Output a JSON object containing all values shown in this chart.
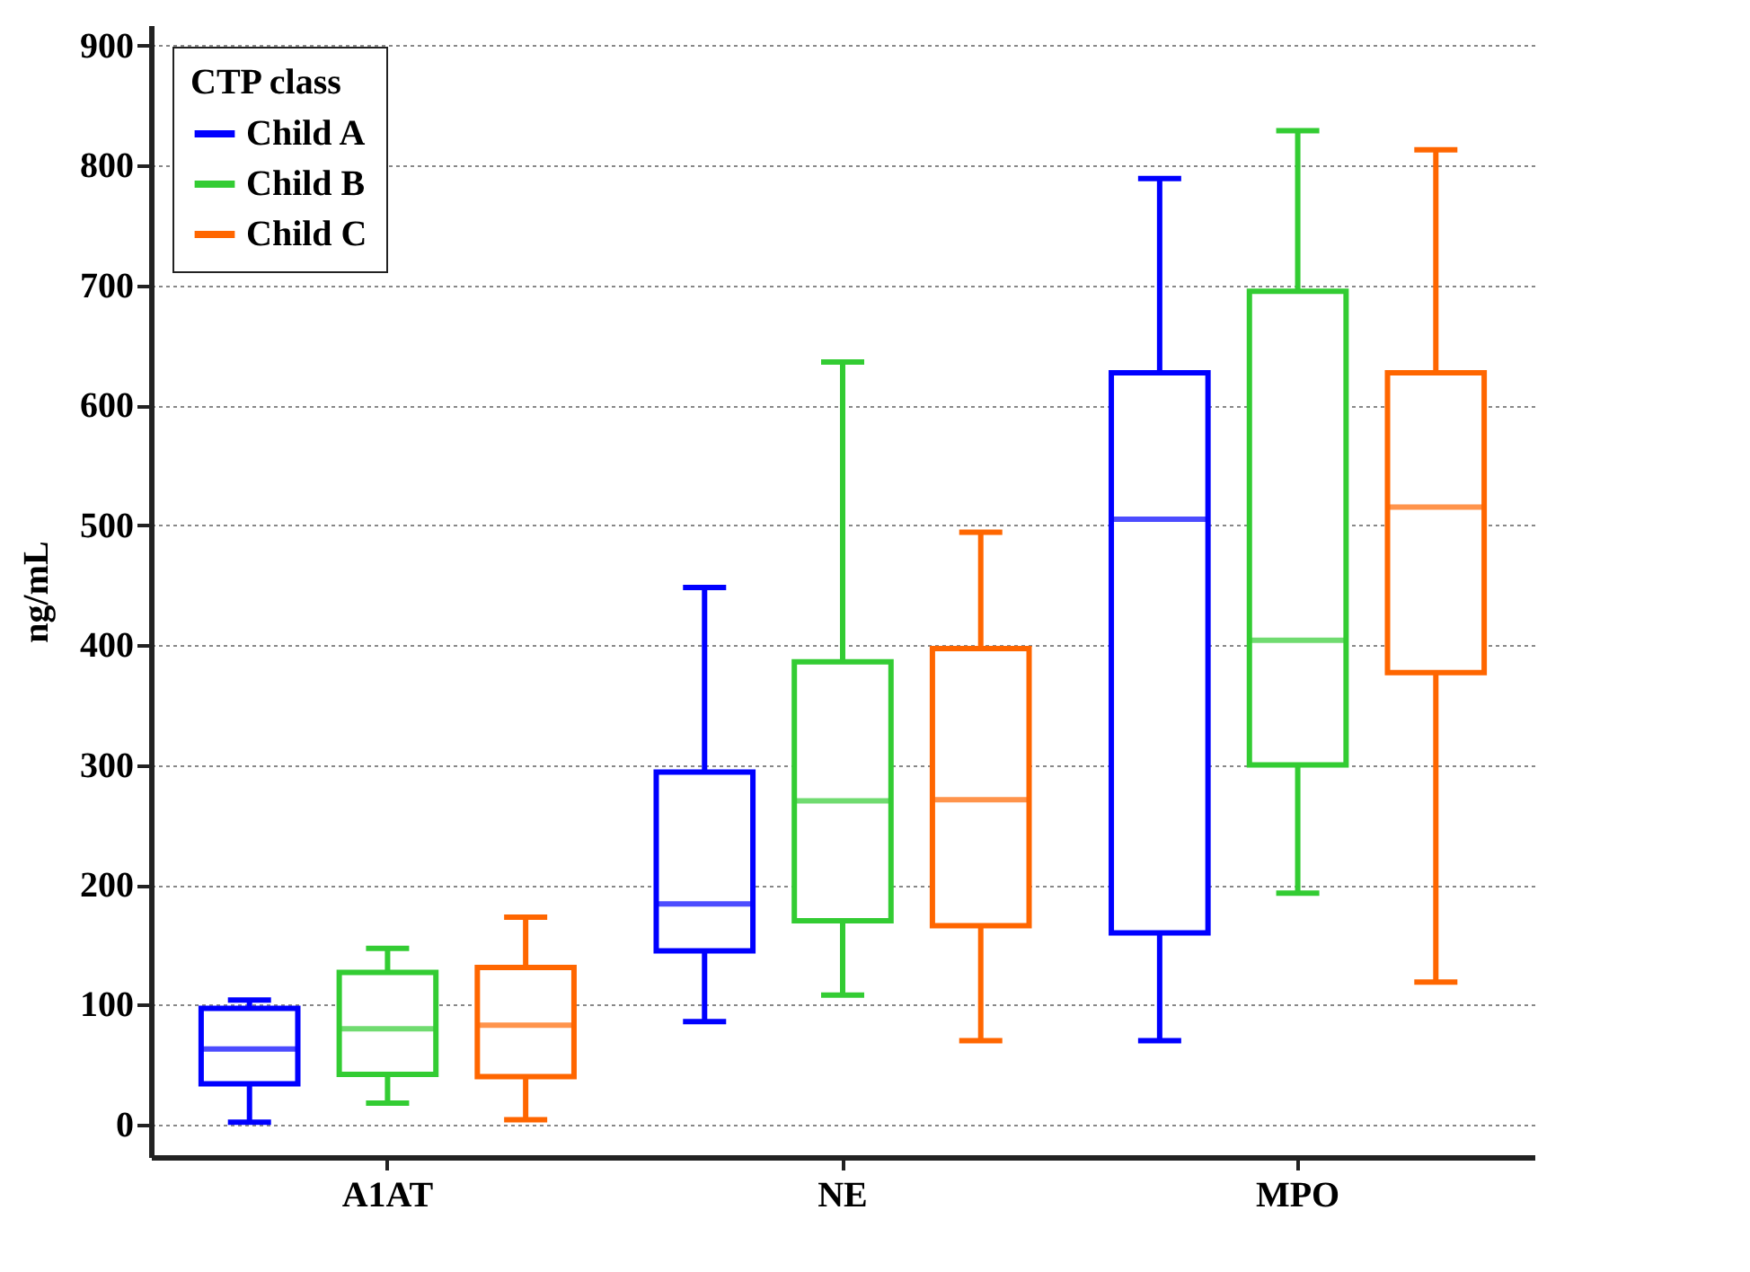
{
  "chart_data": {
    "type": "box",
    "ylabel": "ng/mL",
    "legend_title": "CTP class",
    "categories": [
      "A1AT",
      "NE",
      "MPO"
    ],
    "series": [
      {
        "name": "Child A",
        "color": "#0000ff",
        "boxes": [
          {
            "low": 2,
            "q1": 34,
            "median": 63,
            "q3": 97,
            "high": 104
          },
          {
            "low": 86,
            "q1": 145,
            "median": 184,
            "q3": 294,
            "high": 448
          },
          {
            "low": 70,
            "q1": 160,
            "median": 505,
            "q3": 627,
            "high": 789
          }
        ]
      },
      {
        "name": "Child B",
        "color": "#33cc33",
        "boxes": [
          {
            "low": 18,
            "q1": 42,
            "median": 80,
            "q3": 127,
            "high": 147
          },
          {
            "low": 108,
            "q1": 170,
            "median": 270,
            "q3": 386,
            "high": 636
          },
          {
            "low": 193,
            "q1": 300,
            "median": 404,
            "q3": 695,
            "high": 829
          }
        ]
      },
      {
        "name": "Child C",
        "color": "#ff6600",
        "boxes": [
          {
            "low": 4,
            "q1": 40,
            "median": 83,
            "q3": 131,
            "high": 173
          },
          {
            "low": 70,
            "q1": 166,
            "median": 271,
            "q3": 397,
            "high": 494
          },
          {
            "low": 119,
            "q1": 377,
            "median": 515,
            "q3": 627,
            "high": 813
          }
        ]
      }
    ],
    "ylim": [
      -27,
      917
    ],
    "yticks": [
      0,
      100,
      200,
      300,
      400,
      500,
      600,
      700,
      800,
      900
    ],
    "grid": "y",
    "legend": "top left"
  }
}
